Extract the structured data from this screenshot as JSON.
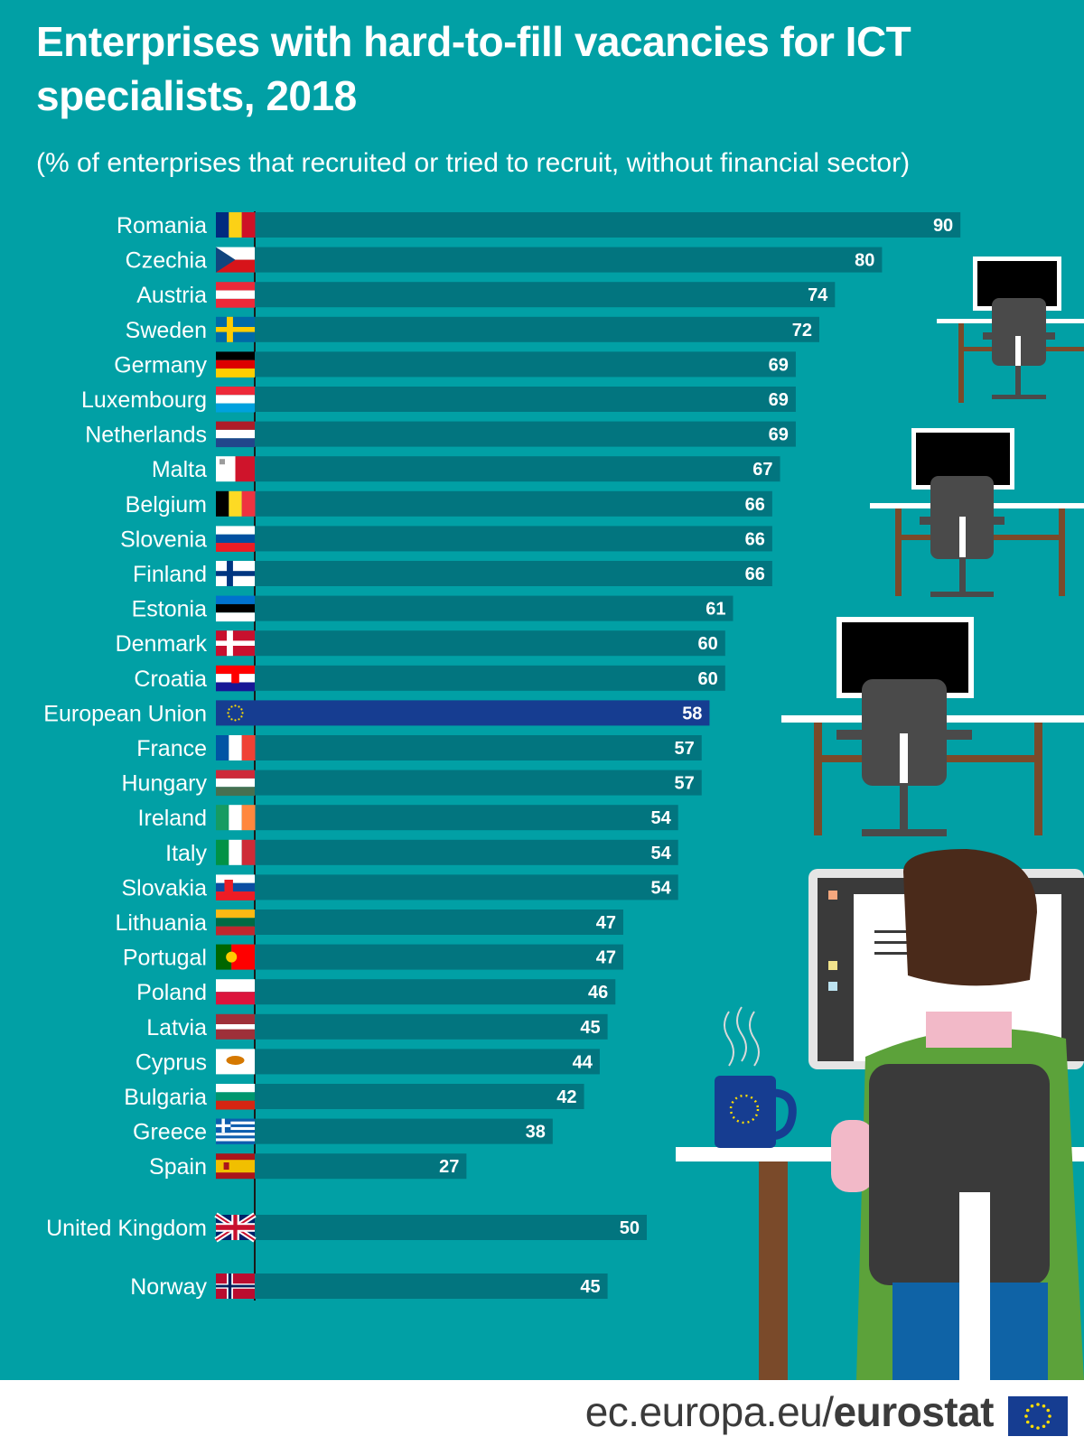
{
  "header": {
    "title": "Enterprises with hard-to-fill vacancies for ICT specialists, 2018",
    "subtitle": "(% of enterprises that recruited or tried to recruit, without financial sector)"
  },
  "footer": {
    "url_prefix": "ec.europa.eu/",
    "url_brand": "eurostat"
  },
  "colors": {
    "background": "#01a0a5",
    "bar": "#02757f",
    "bar_highlight": "#163d91",
    "text": "#ffffff"
  },
  "chart_data": {
    "type": "bar",
    "orientation": "horizontal",
    "unit": "%",
    "categories": [
      "Romania",
      "Czechia",
      "Austria",
      "Sweden",
      "Germany",
      "Luxembourg",
      "Netherlands",
      "Malta",
      "Belgium",
      "Slovenia",
      "Finland",
      "Estonia",
      "Denmark",
      "Croatia",
      "European Union",
      "France",
      "Hungary",
      "Ireland",
      "Italy",
      "Slovakia",
      "Lithuania",
      "Portugal",
      "Poland",
      "Latvia",
      "Cyprus",
      "Bulgaria",
      "Greece",
      "Spain",
      "United Kingdom",
      "Norway"
    ],
    "values": [
      90,
      80,
      74,
      72,
      69,
      69,
      69,
      67,
      66,
      66,
      66,
      61,
      60,
      60,
      58,
      57,
      57,
      54,
      54,
      54,
      47,
      47,
      46,
      45,
      44,
      42,
      38,
      27,
      50,
      45
    ],
    "highlight": "European Union",
    "groups": [
      {
        "from": 0,
        "to": 27
      },
      {
        "from": 28,
        "to": 28
      },
      {
        "from": 29,
        "to": 29
      }
    ],
    "xlim": [
      0,
      100
    ],
    "flag_icons": [
      "flag-romania",
      "flag-czechia",
      "flag-austria",
      "flag-sweden",
      "flag-germany",
      "flag-luxembourg",
      "flag-netherlands",
      "flag-malta",
      "flag-belgium",
      "flag-slovenia",
      "flag-finland",
      "flag-estonia",
      "flag-denmark",
      "flag-croatia",
      "flag-european-union",
      "flag-france",
      "flag-hungary",
      "flag-ireland",
      "flag-italy",
      "flag-slovakia",
      "flag-lithuania",
      "flag-portugal",
      "flag-poland",
      "flag-latvia",
      "flag-cyprus",
      "flag-bulgaria",
      "flag-greece",
      "flag-spain",
      "flag-united-kingdom",
      "flag-norway"
    ]
  }
}
